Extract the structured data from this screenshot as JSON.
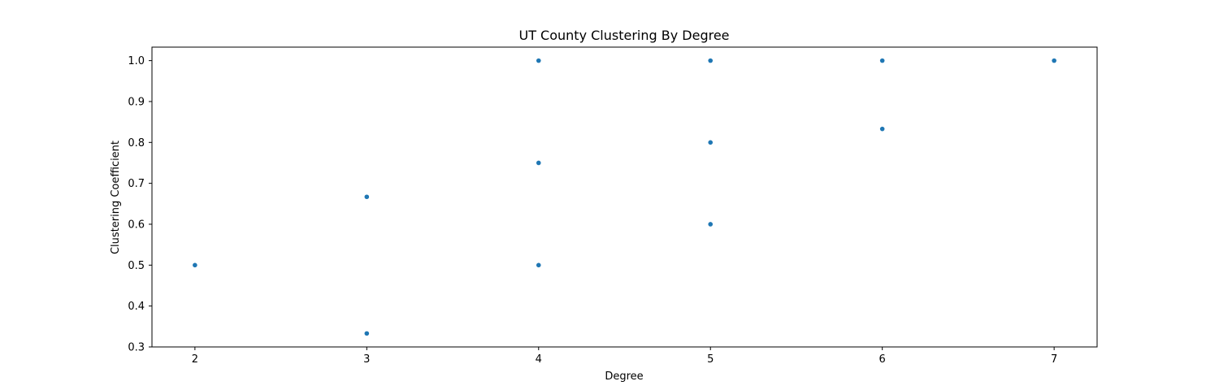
{
  "chart_data": {
    "type": "scatter",
    "title": "UT County Clustering By Degree",
    "xlabel": "Degree",
    "ylabel": "Clustering Coefficient",
    "xlim": [
      1.75,
      7.25
    ],
    "ylim": [
      0.3,
      1.033
    ],
    "xticks": [
      2,
      3,
      4,
      5,
      6,
      7
    ],
    "yticks": [
      0.3,
      0.4,
      0.5,
      0.6,
      0.7,
      0.8,
      0.9,
      1.0
    ],
    "grid": false,
    "series": [
      {
        "color": "#1f77b4",
        "points": [
          {
            "x": 2,
            "y": 0.5
          },
          {
            "x": 3,
            "y": 0.667
          },
          {
            "x": 3,
            "y": 0.333
          },
          {
            "x": 4,
            "y": 1.0
          },
          {
            "x": 4,
            "y": 0.75
          },
          {
            "x": 4,
            "y": 0.5
          },
          {
            "x": 5,
            "y": 1.0
          },
          {
            "x": 5,
            "y": 0.8
          },
          {
            "x": 5,
            "y": 0.6
          },
          {
            "x": 6,
            "y": 1.0
          },
          {
            "x": 6,
            "y": 0.833
          },
          {
            "x": 7,
            "y": 1.0
          }
        ]
      }
    ]
  }
}
